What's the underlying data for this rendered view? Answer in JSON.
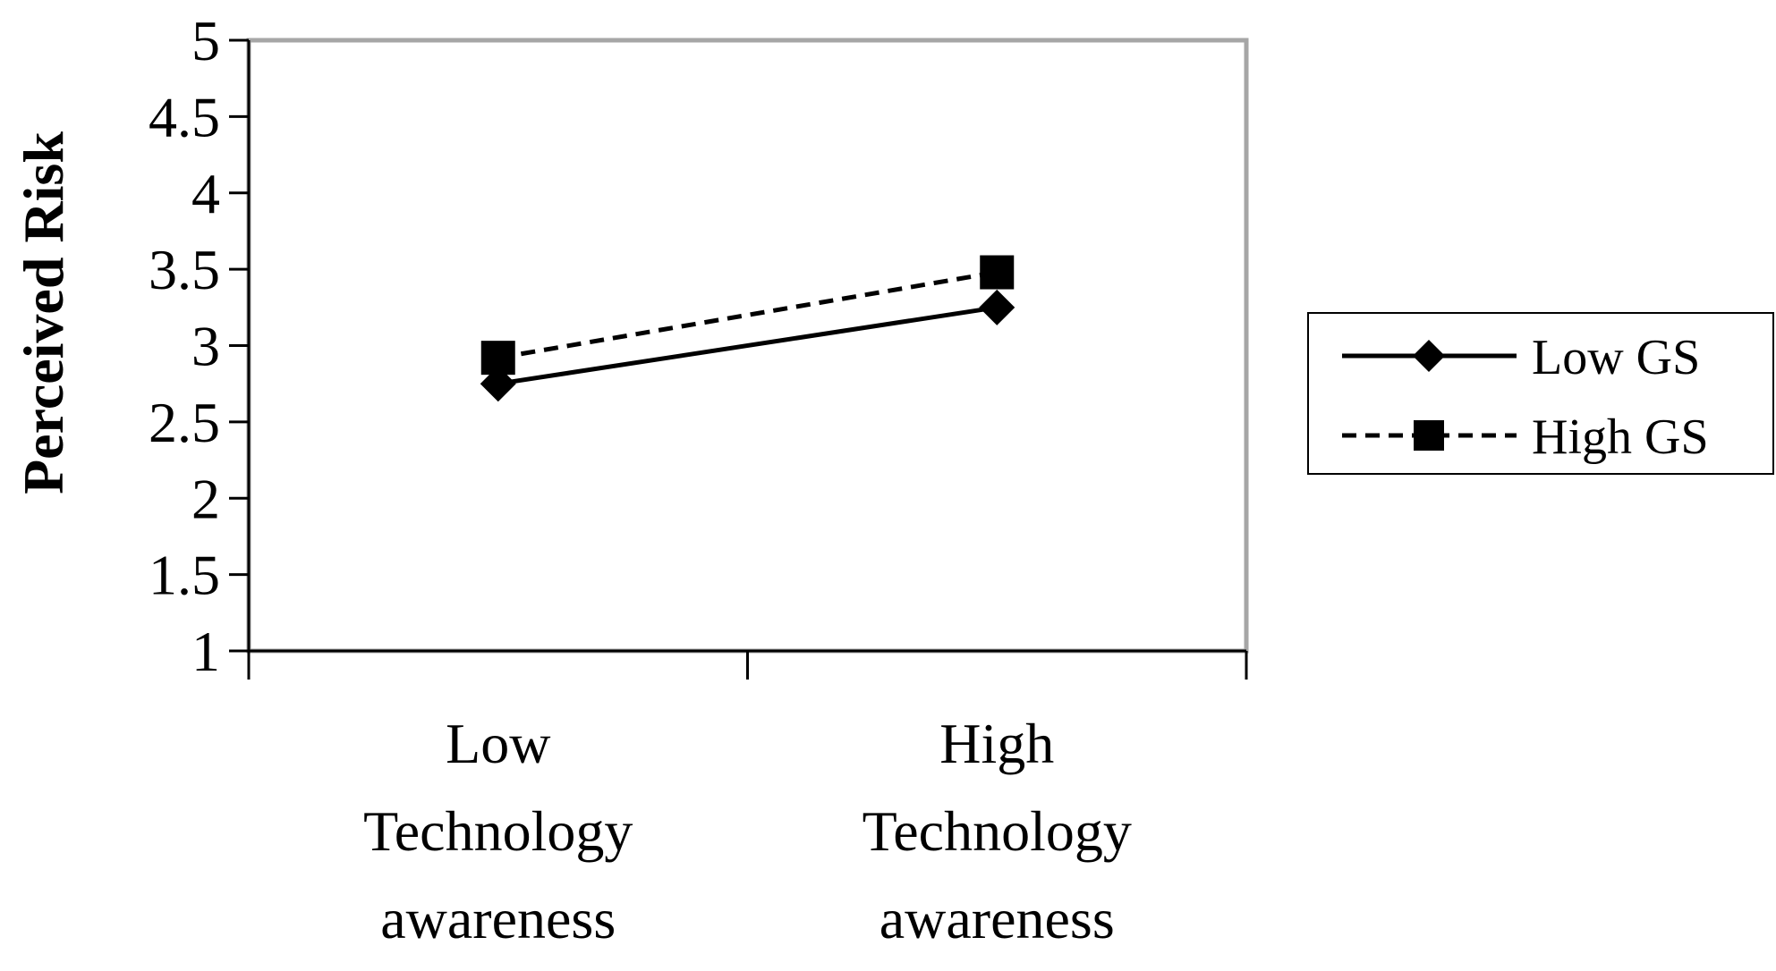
{
  "chart_data": {
    "type": "line",
    "title": "",
    "xlabel": "",
    "ylabel": "Perceived Risk",
    "categories": [
      [
        "Low",
        "Technology",
        "awareness"
      ],
      [
        "High",
        "Technology",
        "awareness"
      ]
    ],
    "ylim": [
      1,
      5
    ],
    "yticks": [
      "1",
      "1.5",
      "2",
      "2.5",
      "3",
      "3.5",
      "4",
      "4.5",
      "5"
    ],
    "grid": false,
    "legend_position": "right",
    "series": [
      {
        "name": "Low GS",
        "values": [
          2.75,
          3.25
        ],
        "marker": "diamond",
        "line_style": "solid",
        "color": "#000000"
      },
      {
        "name": "High GS",
        "values": [
          2.92,
          3.48
        ],
        "marker": "square",
        "line_style": "dashed",
        "color": "#000000"
      }
    ],
    "plot_border_color": "#a6a6a6"
  }
}
